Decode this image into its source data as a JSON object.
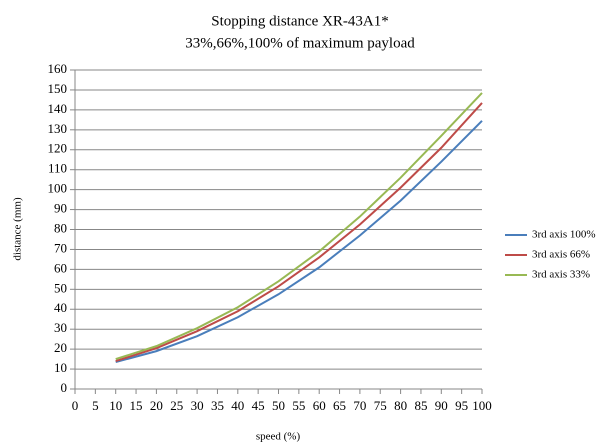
{
  "chart_data": {
    "type": "line",
    "title": "Stopping distance  XR-43A1*",
    "subtitle": "33%,66%,100% of maximum payload",
    "x_label": "speed (%)",
    "y_label": "distance (mm)",
    "x": [
      10,
      20,
      30,
      40,
      50,
      60,
      70,
      80,
      90,
      100
    ],
    "series": [
      {
        "name": "3rd axis 100%",
        "color": "#4a7ebb",
        "values": [
          13.5,
          19,
          26.5,
          36,
          47.5,
          61,
          77,
          94.5,
          114,
          134.5
        ]
      },
      {
        "name": "3rd axis 66%",
        "color": "#be4b48",
        "values": [
          14,
          20.5,
          29,
          39,
          51.5,
          66,
          82.5,
          101,
          121,
          143.5
        ]
      },
      {
        "name": "3rd axis 33%",
        "color": "#98b954",
        "values": [
          15,
          21.5,
          30.5,
          41,
          54,
          69,
          86.5,
          106,
          127,
          148.5
        ]
      }
    ],
    "xlim": [
      0,
      100
    ],
    "xticks": [
      0,
      5,
      10,
      15,
      20,
      25,
      30,
      35,
      40,
      45,
      50,
      55,
      60,
      65,
      70,
      75,
      80,
      85,
      90,
      95,
      100
    ],
    "ylim": [
      0,
      160
    ],
    "yticks": [
      0,
      10,
      20,
      30,
      40,
      50,
      60,
      70,
      80,
      90,
      100,
      110,
      120,
      130,
      140,
      150,
      160
    ],
    "grid": true,
    "legend": "right"
  }
}
